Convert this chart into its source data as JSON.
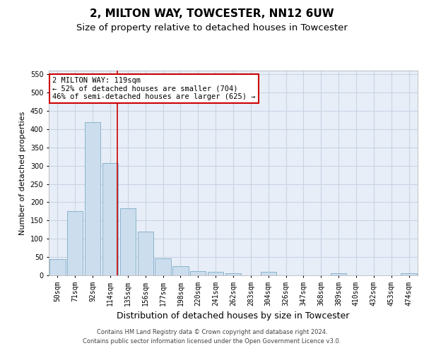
{
  "title": "2, MILTON WAY, TOWCESTER, NN12 6UW",
  "subtitle": "Size of property relative to detached houses in Towcester",
  "xlabel": "Distribution of detached houses by size in Towcester",
  "ylabel": "Number of detached properties",
  "categories": [
    "50sqm",
    "71sqm",
    "92sqm",
    "114sqm",
    "135sqm",
    "156sqm",
    "177sqm",
    "198sqm",
    "220sqm",
    "241sqm",
    "262sqm",
    "283sqm",
    "304sqm",
    "326sqm",
    "347sqm",
    "368sqm",
    "389sqm",
    "410sqm",
    "432sqm",
    "453sqm",
    "474sqm"
  ],
  "values": [
    45,
    175,
    420,
    308,
    183,
    120,
    47,
    25,
    12,
    10,
    5,
    0,
    10,
    0,
    0,
    0,
    5,
    0,
    0,
    0,
    5
  ],
  "bar_color": "#ccdded",
  "bar_edge_color": "#8ab4cc",
  "grid_color": "#c8d4e4",
  "background_color": "#e8eef8",
  "red_line_index": 3,
  "red_line_color": "#cc0000",
  "annotation_text": "2 MILTON WAY: 119sqm\n← 52% of detached houses are smaller (704)\n46% of semi-detached houses are larger (625) →",
  "annotation_box_facecolor": "#ffffff",
  "annotation_box_edgecolor": "#cc0000",
  "ylim": [
    0,
    560
  ],
  "yticks": [
    0,
    50,
    100,
    150,
    200,
    250,
    300,
    350,
    400,
    450,
    500,
    550
  ],
  "footer_line1": "Contains HM Land Registry data © Crown copyright and database right 2024.",
  "footer_line2": "Contains public sector information licensed under the Open Government Licence v3.0.",
  "title_fontsize": 11,
  "subtitle_fontsize": 9.5,
  "tick_fontsize": 7,
  "ylabel_fontsize": 8,
  "xlabel_fontsize": 9,
  "annotation_fontsize": 7.5,
  "footer_fontsize": 6
}
